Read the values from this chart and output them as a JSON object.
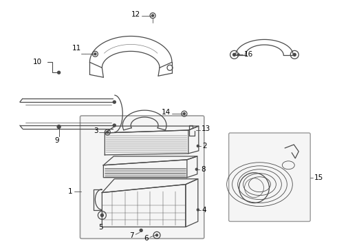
{
  "bg_color": "#ffffff",
  "line_color": "#4a4a4a",
  "label_color": "#000000",
  "font_size": 7.5,
  "fig_width": 4.9,
  "fig_height": 3.6,
  "dpi": 100
}
